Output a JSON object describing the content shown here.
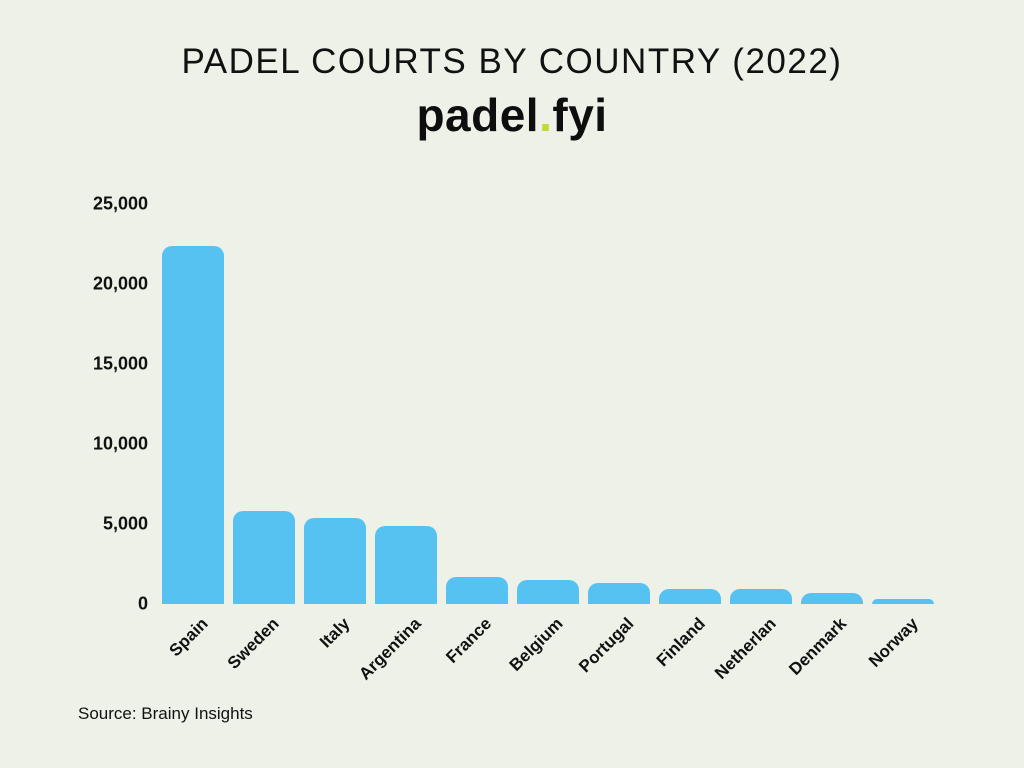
{
  "header": {
    "title": "PADEL COURTS BY COUNTRY (2022)",
    "logo": {
      "part1": "padel",
      "dot": ".",
      "part2": "fyi",
      "dot_color": "#c3d832"
    }
  },
  "chart_data": {
    "type": "bar",
    "title": "PADEL COURTS BY COUNTRY (2022)",
    "categories": [
      "Spain",
      "Sweden",
      "Italy",
      "Argentina",
      "France",
      "Belgium",
      "Portugal",
      "Finland",
      "Netherlan",
      "Denmark",
      "Norway"
    ],
    "values": [
      22400,
      5800,
      5400,
      4900,
      1700,
      1500,
      1300,
      950,
      950,
      700,
      300
    ],
    "xlabel": "",
    "ylabel": "",
    "ylim": [
      0,
      25000
    ],
    "yticks": [
      {
        "value": 0,
        "label": "0"
      },
      {
        "value": 5000,
        "label": "5,000"
      },
      {
        "value": 10000,
        "label": "10,000"
      },
      {
        "value": 15000,
        "label": "15,000"
      },
      {
        "value": 20000,
        "label": "20,000"
      },
      {
        "value": 25000,
        "label": "25,000"
      }
    ],
    "bar_color": "#56c2f2",
    "grid": false,
    "legend": false,
    "x_label_rotation": -45
  },
  "footer": {
    "source": "Source: Brainy Insights"
  }
}
